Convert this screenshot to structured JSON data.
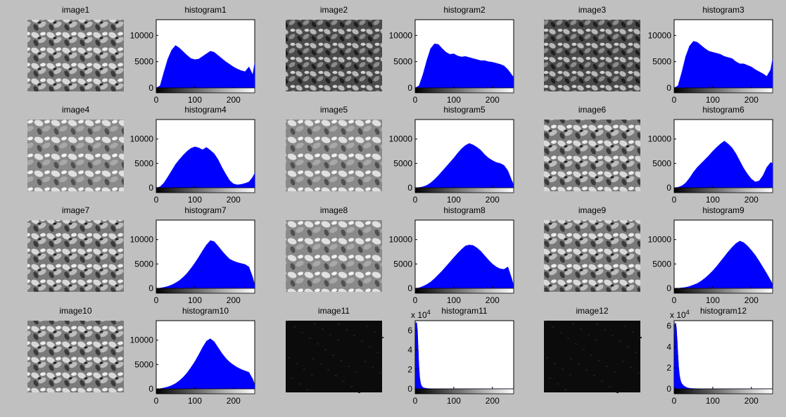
{
  "colors": {
    "figure_bg": "#c0c0c0",
    "axes_bg": "#ffffff",
    "bars": "#0000ff"
  },
  "panels": [
    {
      "image_title": "image1",
      "histogram_title": "histogram1",
      "tone": "leaves-bright"
    },
    {
      "image_title": "image2",
      "histogram_title": "histogram2",
      "tone": "leaves-dark"
    },
    {
      "image_title": "image3",
      "histogram_title": "histogram3",
      "tone": "leaves-dark"
    },
    {
      "image_title": "image4",
      "histogram_title": "histogram4",
      "tone": "leaves-mid"
    },
    {
      "image_title": "image5",
      "histogram_title": "histogram5",
      "tone": "leaves-mid"
    },
    {
      "image_title": "image6",
      "histogram_title": "histogram6",
      "tone": "leaves-bright"
    },
    {
      "image_title": "image7",
      "histogram_title": "histogram7",
      "tone": "leaves-bright"
    },
    {
      "image_title": "image8",
      "histogram_title": "histogram8",
      "tone": "leaves-mid"
    },
    {
      "image_title": "image9",
      "histogram_title": "histogram9",
      "tone": "leaves-bright"
    },
    {
      "image_title": "image10",
      "histogram_title": "histogram10",
      "tone": "leaves-bright"
    },
    {
      "image_title": "image11",
      "histogram_title": "histogram11",
      "tone": "near-black"
    },
    {
      "image_title": "image12",
      "histogram_title": "histogram12",
      "tone": "near-black"
    }
  ],
  "chart_data": [
    {
      "type": "bar",
      "title": "histogram1",
      "xlim": [
        0,
        255
      ],
      "ylim": [
        0,
        13000
      ],
      "xticks": [
        "0",
        "100",
        "200"
      ],
      "yticks": [
        "0",
        "5000",
        "10000"
      ],
      "yticks_values": [
        0,
        5000,
        10000
      ],
      "exponent_label": "",
      "x": [
        0,
        10,
        20,
        30,
        40,
        50,
        60,
        70,
        80,
        90,
        100,
        110,
        120,
        130,
        140,
        150,
        160,
        170,
        180,
        190,
        200,
        210,
        220,
        230,
        240,
        250,
        255
      ],
      "y": [
        0,
        400,
        3000,
        5500,
        7200,
        8100,
        7600,
        6900,
        6200,
        5600,
        5400,
        5500,
        6000,
        6500,
        7000,
        6800,
        6200,
        5600,
        5000,
        4500,
        4000,
        3600,
        3300,
        3100,
        4000,
        2500,
        4800
      ]
    },
    {
      "type": "bar",
      "title": "histogram2",
      "xlim": [
        0,
        255
      ],
      "ylim": [
        0,
        13000
      ],
      "xticks": [
        "0",
        "100",
        "200"
      ],
      "yticks": [
        "0",
        "5000",
        "10000"
      ],
      "yticks_values": [
        0,
        5000,
        10000
      ],
      "exponent_label": "",
      "x": [
        0,
        10,
        20,
        30,
        40,
        50,
        60,
        70,
        80,
        90,
        100,
        110,
        120,
        130,
        140,
        150,
        160,
        170,
        180,
        190,
        200,
        210,
        220,
        230,
        240,
        250,
        255
      ],
      "y": [
        0,
        400,
        2500,
        5200,
        7500,
        8400,
        8300,
        7500,
        6800,
        6400,
        6500,
        6100,
        5900,
        6000,
        5800,
        5600,
        5400,
        5200,
        5200,
        5000,
        4900,
        4700,
        4500,
        4200,
        3500,
        2500,
        2000
      ]
    },
    {
      "type": "bar",
      "title": "histogram3",
      "xlim": [
        0,
        255
      ],
      "ylim": [
        0,
        13000
      ],
      "xticks": [
        "0",
        "100",
        "200"
      ],
      "yticks": [
        "0",
        "5000",
        "10000"
      ],
      "yticks_values": [
        0,
        5000,
        10000
      ],
      "exponent_label": "",
      "x": [
        0,
        10,
        20,
        30,
        40,
        50,
        60,
        70,
        80,
        90,
        100,
        110,
        120,
        130,
        140,
        150,
        160,
        170,
        180,
        190,
        200,
        210,
        220,
        230,
        240,
        250,
        255
      ],
      "y": [
        0,
        400,
        3000,
        6000,
        8000,
        8900,
        8700,
        8100,
        7500,
        7000,
        6800,
        6600,
        6400,
        6000,
        5800,
        5600,
        5000,
        4600,
        4600,
        4300,
        4000,
        3500,
        3100,
        2700,
        2200,
        3500,
        5500
      ]
    },
    {
      "type": "bar",
      "title": "histogram4",
      "xlim": [
        0,
        255
      ],
      "ylim": [
        0,
        14000
      ],
      "xticks": [
        "0",
        "100",
        "200"
      ],
      "yticks": [
        "0",
        "5000",
        "10000"
      ],
      "yticks_values": [
        0,
        5000,
        10000
      ],
      "exponent_label": "",
      "x": [
        0,
        10,
        20,
        30,
        40,
        50,
        60,
        70,
        80,
        90,
        100,
        110,
        120,
        130,
        140,
        150,
        160,
        170,
        180,
        190,
        200,
        210,
        220,
        230,
        240,
        250,
        255
      ],
      "y": [
        0,
        200,
        1000,
        2200,
        3500,
        4800,
        5800,
        6700,
        7500,
        8100,
        8400,
        8200,
        7800,
        8300,
        7700,
        7000,
        5800,
        4200,
        2800,
        1500,
        800,
        600,
        700,
        900,
        1200,
        2200,
        3000
      ]
    },
    {
      "type": "bar",
      "title": "histogram5",
      "xlim": [
        0,
        255
      ],
      "ylim": [
        0,
        14000
      ],
      "xticks": [
        "0",
        "100",
        "200"
      ],
      "yticks": [
        "0",
        "5000",
        "10000"
      ],
      "yticks_values": [
        0,
        5000,
        10000
      ],
      "exponent_label": "",
      "x": [
        0,
        10,
        20,
        30,
        40,
        50,
        60,
        70,
        80,
        90,
        100,
        110,
        120,
        130,
        140,
        150,
        160,
        170,
        180,
        190,
        200,
        210,
        220,
        230,
        240,
        250,
        255
      ],
      "y": [
        0,
        50,
        200,
        500,
        1000,
        1700,
        2500,
        3400,
        4300,
        5200,
        6100,
        7100,
        8000,
        8700,
        9100,
        8800,
        8300,
        7700,
        6800,
        6100,
        5600,
        5200,
        5000,
        4600,
        3500,
        1500,
        600
      ]
    },
    {
      "type": "bar",
      "title": "histogram6",
      "xlim": [
        0,
        255
      ],
      "ylim": [
        0,
        14000
      ],
      "xticks": [
        "0",
        "100",
        "200"
      ],
      "yticks": [
        "0",
        "5000",
        "10000"
      ],
      "yticks_values": [
        0,
        5000,
        10000
      ],
      "exponent_label": "",
      "x": [
        0,
        10,
        20,
        30,
        40,
        50,
        60,
        70,
        80,
        90,
        100,
        110,
        120,
        130,
        140,
        150,
        160,
        170,
        180,
        190,
        200,
        210,
        220,
        230,
        240,
        250,
        255
      ],
      "y": [
        0,
        100,
        400,
        1000,
        2000,
        3200,
        4200,
        5000,
        5800,
        6600,
        7500,
        8300,
        9000,
        9600,
        9000,
        8200,
        7000,
        5500,
        4000,
        2800,
        1800,
        1200,
        1400,
        2500,
        4200,
        5200,
        5000
      ]
    },
    {
      "type": "bar",
      "title": "histogram7",
      "xlim": [
        0,
        255
      ],
      "ylim": [
        0,
        14000
      ],
      "xticks": [
        "0",
        "100",
        "200"
      ],
      "yticks": [
        "0",
        "5000",
        "10000"
      ],
      "yticks_values": [
        0,
        5000,
        10000
      ],
      "exponent_label": "",
      "x": [
        0,
        10,
        20,
        30,
        40,
        50,
        60,
        70,
        80,
        90,
        100,
        110,
        120,
        130,
        140,
        150,
        160,
        170,
        180,
        190,
        200,
        210,
        220,
        230,
        240,
        250,
        255
      ],
      "y": [
        0,
        50,
        200,
        400,
        700,
        1100,
        1600,
        2300,
        3100,
        4100,
        5200,
        6400,
        7700,
        8900,
        9800,
        9600,
        8700,
        7700,
        6800,
        6000,
        5600,
        5300,
        5100,
        4900,
        4400,
        2200,
        600
      ]
    },
    {
      "type": "bar",
      "title": "histogram8",
      "xlim": [
        0,
        255
      ],
      "ylim": [
        0,
        14000
      ],
      "xticks": [
        "0",
        "100",
        "200"
      ],
      "yticks": [
        "0",
        "5000",
        "10000"
      ],
      "yticks_values": [
        0,
        5000,
        10000
      ],
      "exponent_label": "",
      "x": [
        0,
        10,
        20,
        30,
        40,
        50,
        60,
        70,
        80,
        90,
        100,
        110,
        120,
        130,
        140,
        150,
        160,
        170,
        180,
        190,
        200,
        210,
        220,
        230,
        240,
        250,
        255
      ],
      "y": [
        0,
        100,
        400,
        800,
        1300,
        2000,
        2800,
        3600,
        4500,
        5400,
        6300,
        7200,
        8000,
        8700,
        8900,
        8800,
        8300,
        7600,
        6700,
        5800,
        5000,
        4400,
        4000,
        3900,
        4400,
        2000,
        500
      ]
    },
    {
      "type": "bar",
      "title": "histogram9",
      "xlim": [
        0,
        255
      ],
      "ylim": [
        0,
        14000
      ],
      "xticks": [
        "0",
        "100",
        "200"
      ],
      "yticks": [
        "0",
        "5000",
        "10000"
      ],
      "yticks_values": [
        0,
        5000,
        10000
      ],
      "exponent_label": "",
      "x": [
        0,
        10,
        20,
        30,
        40,
        50,
        60,
        70,
        80,
        90,
        100,
        110,
        120,
        130,
        140,
        150,
        160,
        170,
        180,
        190,
        200,
        210,
        220,
        230,
        240,
        250,
        255
      ],
      "y": [
        0,
        20,
        100,
        200,
        400,
        700,
        1000,
        1500,
        2100,
        2800,
        3600,
        4500,
        5500,
        6500,
        7500,
        8400,
        9200,
        9700,
        9400,
        8700,
        7800,
        6800,
        5600,
        4300,
        3000,
        1600,
        800
      ]
    },
    {
      "type": "bar",
      "title": "histogram10",
      "xlim": [
        0,
        255
      ],
      "ylim": [
        0,
        14000
      ],
      "xticks": [
        "0",
        "100",
        "200"
      ],
      "yticks": [
        "0",
        "5000",
        "10000"
      ],
      "yticks_values": [
        0,
        5000,
        10000
      ],
      "exponent_label": "",
      "x": [
        0,
        10,
        20,
        30,
        40,
        50,
        60,
        70,
        80,
        90,
        100,
        110,
        120,
        130,
        140,
        150,
        160,
        170,
        180,
        190,
        200,
        210,
        220,
        230,
        240,
        250,
        255
      ],
      "y": [
        0,
        50,
        200,
        400,
        700,
        1100,
        1700,
        2400,
        3300,
        4400,
        5600,
        7000,
        8500,
        9800,
        10300,
        9700,
        8500,
        7300,
        6300,
        5500,
        4900,
        4400,
        4000,
        3700,
        3400,
        2000,
        800
      ]
    },
    {
      "type": "bar",
      "title": "histogram11",
      "xlim": [
        0,
        255
      ],
      "ylim": [
        0,
        7
      ],
      "xticks": [
        "0",
        "100",
        "200"
      ],
      "yticks": [
        "0",
        "2",
        "4",
        "6"
      ],
      "yticks_values": [
        0,
        2,
        4,
        6
      ],
      "exponent_label": "x 10",
      "exponent_power": "4",
      "x": [
        0,
        2,
        4,
        6,
        8,
        10,
        12,
        14,
        16,
        18,
        20,
        25,
        30,
        35,
        40,
        50,
        60,
        80,
        100,
        150,
        200,
        255
      ],
      "y": [
        0.5,
        6.8,
        6.8,
        6.0,
        4.0,
        2.2,
        1.1,
        0.6,
        0.35,
        0.25,
        0.15,
        0.08,
        0.05,
        0.03,
        0.02,
        0.01,
        0.01,
        0.005,
        0.0,
        0.0,
        0.0,
        0.0
      ]
    },
    {
      "type": "bar",
      "title": "histogram12",
      "xlim": [
        0,
        255
      ],
      "ylim": [
        0,
        6.5
      ],
      "xticks": [
        "0",
        "100",
        "200"
      ],
      "yticks": [
        "0",
        "2",
        "4",
        "6"
      ],
      "yticks_values": [
        0,
        2,
        4,
        6
      ],
      "exponent_label": "x 10",
      "exponent_power": "4",
      "x": [
        0,
        2,
        4,
        6,
        8,
        10,
        12,
        14,
        16,
        18,
        20,
        25,
        30,
        35,
        40,
        50,
        60,
        80,
        100,
        150,
        200,
        255
      ],
      "y": [
        0.3,
        6.2,
        6.3,
        5.8,
        4.6,
        3.2,
        2.0,
        1.3,
        0.9,
        0.65,
        0.5,
        0.3,
        0.18,
        0.1,
        0.06,
        0.03,
        0.02,
        0.01,
        0.0,
        0.0,
        0.0,
        0.0
      ]
    }
  ]
}
